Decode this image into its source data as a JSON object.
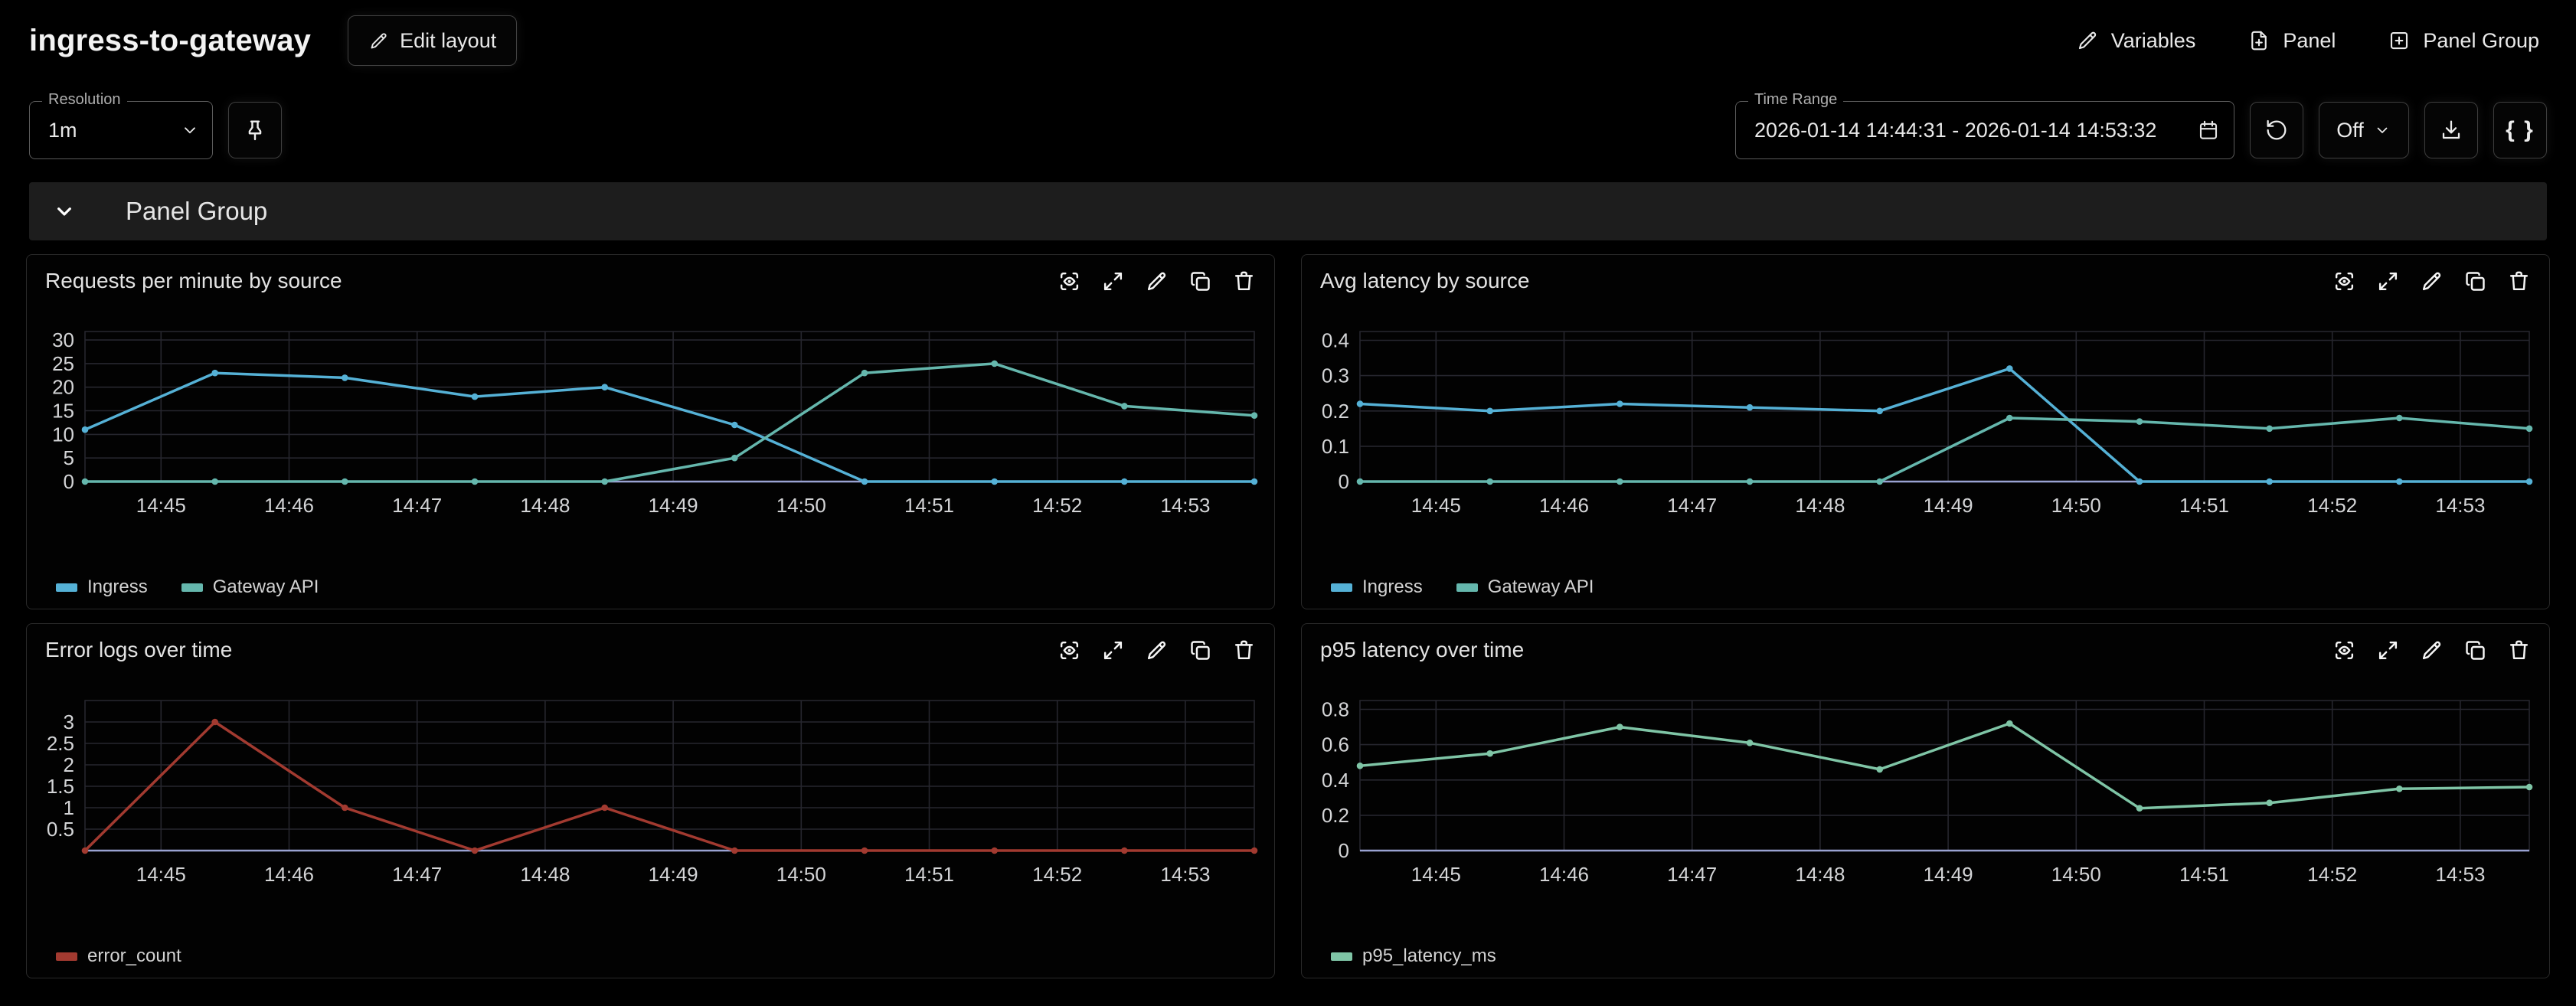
{
  "header": {
    "title": "ingress-to-gateway",
    "edit_layout_button": "Edit layout",
    "variables_button": "Variables",
    "panel_button": "Panel",
    "panel_group_button": "Panel Group"
  },
  "toolbar": {
    "resolution": {
      "label": "Resolution",
      "value": "1m"
    },
    "time_range": {
      "label": "Time Range",
      "value": "2026-01-14 14:44:31 - 2026-01-14 14:53:32"
    },
    "refresh_interval_value": "Off",
    "braces_label": "{ }"
  },
  "panel_group": {
    "title": "Panel Group"
  },
  "style": {
    "grid_color": "#26262e",
    "axis_color": "#99a2d2",
    "tick_color": "#d3d4d6",
    "ingress_color": "#55b1d6",
    "gateway_color": "#65b7ad",
    "error_color": "#a23a30",
    "p95_color": "#7fc5a6"
  },
  "chart_data": [
    {
      "type": "line",
      "title": "Requests per minute by source",
      "x_points": [
        "14:44:31",
        "14:45:31",
        "14:46:31",
        "14:47:31",
        "14:48:31",
        "14:49:31",
        "14:50:31",
        "14:51:31",
        "14:52:31",
        "14:53:31"
      ],
      "x_ticks": [
        "14:45",
        "14:46",
        "14:47",
        "14:48",
        "14:49",
        "14:50",
        "14:51",
        "14:52",
        "14:53"
      ],
      "y_ticks": [
        0,
        5,
        10,
        15,
        20,
        25,
        30
      ],
      "ylim": [
        0,
        31.8
      ],
      "legend_position": "bottom",
      "grid": true,
      "series": [
        {
          "name": "Ingress",
          "color": "#55b1d6",
          "values": [
            11,
            23,
            22,
            18,
            20,
            12,
            0,
            0,
            0,
            0
          ]
        },
        {
          "name": "Gateway API",
          "color": "#65b7ad",
          "values": [
            0,
            0,
            0,
            0,
            0,
            5,
            23,
            25,
            16,
            14
          ]
        }
      ]
    },
    {
      "type": "line",
      "title": "Avg latency by source",
      "x_points": [
        "14:44:31",
        "14:45:31",
        "14:46:31",
        "14:47:31",
        "14:48:31",
        "14:49:31",
        "14:50:31",
        "14:51:31",
        "14:52:31",
        "14:53:31"
      ],
      "x_ticks": [
        "14:45",
        "14:46",
        "14:47",
        "14:48",
        "14:49",
        "14:50",
        "14:51",
        "14:52",
        "14:53"
      ],
      "y_ticks": [
        0,
        0.1,
        0.2,
        0.3,
        0.4
      ],
      "ylim": [
        0,
        0.425
      ],
      "legend_position": "bottom",
      "grid": true,
      "series": [
        {
          "name": "Ingress",
          "color": "#55b1d6",
          "values": [
            0.22,
            0.2,
            0.22,
            0.21,
            0.2,
            0.32,
            0,
            0,
            0,
            0
          ]
        },
        {
          "name": "Gateway API",
          "color": "#65b7ad",
          "values": [
            0,
            0,
            0,
            0,
            0,
            0.18,
            0.17,
            0.15,
            0.18,
            0.15
          ]
        }
      ]
    },
    {
      "type": "line",
      "title": "Error logs over time",
      "x_points": [
        "14:44:31",
        "14:45:31",
        "14:46:31",
        "14:47:31",
        "14:48:31",
        "14:49:31",
        "14:50:31",
        "14:51:31",
        "14:52:31",
        "14:53:31"
      ],
      "x_ticks": [
        "14:45",
        "14:46",
        "14:47",
        "14:48",
        "14:49",
        "14:50",
        "14:51",
        "14:52",
        "14:53"
      ],
      "y_ticks": [
        0.5,
        1,
        1.5,
        2,
        2.5,
        3
      ],
      "ylim": [
        0,
        3.5
      ],
      "legend_position": "bottom",
      "grid": true,
      "series": [
        {
          "name": "error_count",
          "color": "#a23a30",
          "values": [
            0,
            3,
            1,
            0,
            1,
            0,
            0,
            0,
            0,
            0
          ]
        }
      ]
    },
    {
      "type": "line",
      "title": "p95 latency over time",
      "x_points": [
        "14:44:31",
        "14:45:31",
        "14:46:31",
        "14:47:31",
        "14:48:31",
        "14:49:31",
        "14:50:31",
        "14:51:31",
        "14:52:31",
        "14:53:31"
      ],
      "x_ticks": [
        "14:45",
        "14:46",
        "14:47",
        "14:48",
        "14:49",
        "14:50",
        "14:51",
        "14:52",
        "14:53"
      ],
      "y_ticks": [
        0,
        0.2,
        0.4,
        0.6,
        0.8
      ],
      "ylim": [
        0,
        0.85
      ],
      "legend_position": "bottom",
      "grid": true,
      "series": [
        {
          "name": "p95_latency_ms",
          "color": "#7fc5a6",
          "values": [
            0.48,
            0.55,
            0.7,
            0.61,
            0.46,
            0.72,
            0.24,
            0.27,
            0.35,
            0.36
          ]
        }
      ]
    }
  ]
}
